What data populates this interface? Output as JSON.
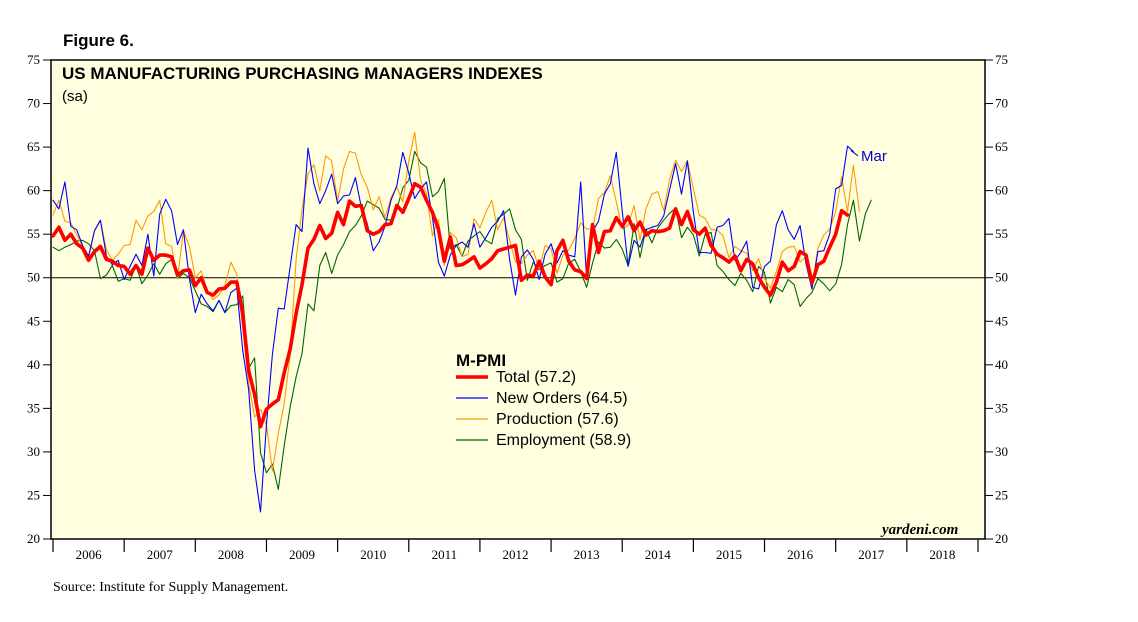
{
  "figure_label": "Figure 6.",
  "source": "Source: Institute for Supply Management.",
  "chart_data": {
    "type": "line",
    "title": "US MANUFACTURING PURCHASING MANAGERS INDEXES",
    "subtitle": "(sa)",
    "brand": "yardeni.com",
    "annotation": "Mar",
    "legend_title": "M-PMI",
    "ylim": [
      20,
      75
    ],
    "yticks": [
      20,
      25,
      30,
      35,
      40,
      45,
      50,
      55,
      60,
      65,
      70,
      75
    ],
    "reference_line": 50,
    "xlim": [
      2006.0,
      2019.0
    ],
    "year_labels": [
      "2006",
      "2007",
      "2008",
      "2009",
      "2010",
      "2011",
      "2012",
      "2013",
      "2014",
      "2015",
      "2016",
      "2017",
      "2018"
    ],
    "start": 2006.0,
    "step": 0.08333,
    "colors": {
      "total": "#ff0000",
      "new_orders": "#0000ff",
      "production": "#ff9900",
      "employment": "#006600",
      "grid": "#000000",
      "background": "#ffffe0"
    },
    "series": [
      {
        "name": "Total",
        "legend": "Total (57.2)",
        "color": "#ff0000",
        "values": [
          54.8,
          55.8,
          54.3,
          55.0,
          53.9,
          53.4,
          52.0,
          53.0,
          53.6,
          52.1,
          51.9,
          51.4,
          51.3,
          50.4,
          51.4,
          50.4,
          53.4,
          52.0,
          52.6,
          52.6,
          52.4,
          50.3,
          50.8,
          50.9,
          49.1,
          50.0,
          48.3,
          48.0,
          48.7,
          48.8,
          49.5,
          49.5,
          45.9,
          39.3,
          36.6,
          32.9,
          34.9,
          35.5,
          36.0,
          39.1,
          41.8,
          45.9,
          49.2,
          53.4,
          54.4,
          56.0,
          54.5,
          55.1,
          57.5,
          56.1,
          58.8,
          58.2,
          58.3,
          55.4,
          55.0,
          55.3,
          56.1,
          56.2,
          58.3,
          57.5,
          59.1,
          60.8,
          60.4,
          58.9,
          57.5,
          55.6,
          51.9,
          54.7,
          51.4,
          51.5,
          51.9,
          52.4,
          51.1,
          51.6,
          52.2,
          53.1,
          53.3,
          53.5,
          53.7,
          49.7,
          50.3,
          50.2,
          51.9,
          50.1,
          49.2,
          53.1,
          54.3,
          51.9,
          50.9,
          50.7,
          49.9,
          56.1,
          52.9,
          55.3,
          55.4,
          56.9,
          55.9,
          57.0,
          55.4,
          56.4,
          54.9,
          55.4,
          55.3,
          55.4,
          55.7,
          57.9,
          56.1,
          57.6,
          55.5,
          55.0,
          55.7,
          53.7,
          52.7,
          52.3,
          51.8,
          52.5,
          50.8,
          52.1,
          51.6,
          50.0,
          48.9,
          48.0,
          49.5,
          51.8,
          50.8,
          51.3,
          53.0,
          52.6,
          49.4,
          51.5,
          51.9,
          53.5,
          55.0,
          57.7,
          57.2
        ]
      },
      {
        "name": "New Orders",
        "legend": "New Orders (64.5)",
        "color": "#0000ff",
        "values": [
          58.9,
          57.9,
          61.0,
          55.9,
          55.5,
          53.7,
          52.5,
          55.4,
          56.6,
          52.5,
          51.5,
          52.0,
          49.8,
          51.3,
          52.7,
          51.4,
          55.0,
          50.2,
          57.3,
          59.0,
          57.7,
          53.8,
          55.5,
          49.9,
          46.0,
          48.1,
          47.0,
          46.2,
          47.4,
          46.0,
          48.3,
          48.8,
          41.7,
          37.1,
          27.9,
          23.1,
          33.2,
          41.2,
          46.5,
          46.4,
          51.3,
          56.1,
          55.3,
          64.9,
          60.8,
          58.5,
          60.0,
          61.9,
          58.5,
          59.4,
          59.5,
          61.5,
          58.1,
          56.2,
          53.1,
          54.1,
          55.9,
          58.9,
          60.6,
          64.4,
          62.0,
          59.1,
          60.2,
          61.0,
          56.9,
          51.8,
          50.2,
          52.6,
          53.7,
          54.1,
          53.5,
          56.2,
          53.5,
          54.6,
          55.8,
          56.5,
          57.7,
          52.1,
          48.0,
          52.4,
          53.2,
          52.1,
          49.8,
          52.7,
          53.9,
          51.7,
          53.1,
          52.6,
          52.4,
          61.0,
          50.0,
          55.3,
          56.5,
          59.6,
          60.8,
          64.4,
          57.7,
          51.3,
          54.3,
          53.5,
          55.5,
          55.8,
          56.0,
          57.1,
          60.1,
          63.1,
          59.6,
          63.4,
          57.5,
          52.9,
          52.9,
          52.8,
          55.8,
          56.0,
          56.8,
          52.0,
          52.9,
          54.2,
          48.9,
          48.7,
          51.3,
          51.9,
          56.1,
          57.7,
          55.5,
          54.4,
          56.0,
          51.6,
          48.7,
          53.0,
          53.1,
          55.0,
          60.2,
          60.6,
          65.1,
          64.5
        ]
      },
      {
        "name": "Production",
        "legend": "Production (57.6)",
        "color": "#ff9900",
        "values": [
          57.2,
          58.9,
          56.5,
          56.3,
          54.9,
          53.6,
          52.3,
          55.4,
          56.6,
          53.2,
          52.0,
          52.7,
          53.7,
          53.8,
          56.6,
          55.5,
          57.1,
          57.6,
          58.9,
          53.9,
          53.6,
          49.9,
          55.4,
          53.6,
          50.0,
          50.8,
          48.5,
          47.5,
          48.0,
          49.1,
          51.8,
          50.4,
          44.2,
          37.8,
          34.0,
          34.9,
          33.1,
          27.8,
          32.1,
          35.5,
          41.2,
          52.1,
          57.9,
          61.9,
          63.0,
          60.0,
          64.0,
          63.4,
          58.8,
          62.5,
          64.5,
          64.3,
          61.8,
          60.4,
          57.8,
          59.3,
          56.9,
          59.2,
          60.4,
          58.7,
          63.4,
          66.7,
          61.2,
          59.7,
          54.8,
          56.7,
          51.4,
          55.2,
          54.6,
          52.4,
          52.7,
          56.8,
          55.7,
          57.5,
          58.9,
          55.5,
          56.9,
          54.3,
          51.8,
          51.6,
          52.6,
          53.1,
          51.0,
          53.7,
          53.3,
          50.5,
          52.6,
          53.2,
          54.5,
          56.3,
          55.6,
          55.6,
          59.1,
          59.8,
          61.7,
          58.7,
          55.6,
          56.0,
          58.3,
          54.3,
          57.9,
          59.6,
          59.9,
          57.7,
          61.3,
          63.5,
          62.2,
          63.5,
          60.2,
          57.2,
          56.8,
          55.5,
          55.5,
          54.8,
          52.3,
          53.6,
          53.1,
          52.8,
          50.8,
          52.2,
          49.9,
          48.8,
          50.7,
          53.0,
          53.5,
          53.6,
          51.8,
          52.4,
          49.0,
          53.4,
          54.9,
          55.6,
          57.6,
          61.6,
          57.6,
          62.9,
          57.6
        ]
      },
      {
        "name": "Employment",
        "legend": "Employment (58.9)",
        "color": "#006600",
        "values": [
          53.5,
          53.1,
          53.5,
          53.8,
          54.2,
          54.3,
          53.9,
          53.1,
          49.9,
          50.3,
          51.4,
          49.6,
          49.9,
          49.7,
          51.4,
          49.3,
          50.3,
          51.6,
          50.4,
          51.6,
          52.1,
          49.9,
          50.5,
          50.0,
          48.5,
          47.0,
          46.7,
          46.1,
          47.4,
          46.0,
          46.8,
          46.9,
          47.9,
          39.6,
          40.8,
          29.9,
          27.6,
          28.6,
          25.7,
          30.7,
          35.2,
          38.6,
          41.3,
          47.0,
          46.2,
          51.4,
          52.9,
          50.5,
          52.6,
          53.8,
          55.3,
          56.0,
          57.1,
          58.8,
          58.4,
          58.0,
          56.7,
          56.6,
          57.9,
          60.3,
          61.2,
          64.5,
          63.2,
          62.7,
          59.3,
          59.9,
          61.4,
          53.3,
          53.8,
          52.5,
          54.2,
          54.8,
          55.3,
          54.3,
          53.9,
          56.8,
          57.3,
          57.9,
          55.5,
          54.4,
          49.7,
          51.8,
          50.9,
          51.4,
          51.7,
          49.5,
          49.9,
          51.7,
          52.1,
          50.7,
          48.9,
          51.7,
          54.1,
          53.4,
          53.5,
          54.4,
          53.3,
          51.4,
          56.2,
          52.3,
          55.6,
          54.0,
          55.7,
          56.6,
          57.4,
          58.0,
          54.6,
          55.8,
          54.9,
          52.5,
          55.0,
          55.2,
          51.4,
          50.7,
          49.8,
          49.1,
          50.5,
          49.7,
          48.4,
          51.3,
          50.6,
          47.1,
          48.9,
          48.4,
          49.8,
          49.2,
          46.7,
          47.6,
          48.3,
          49.9,
          49.3,
          48.5,
          49.3,
          51.5,
          56.1,
          58.9,
          54.2,
          57.3,
          58.9
        ]
      }
    ]
  }
}
